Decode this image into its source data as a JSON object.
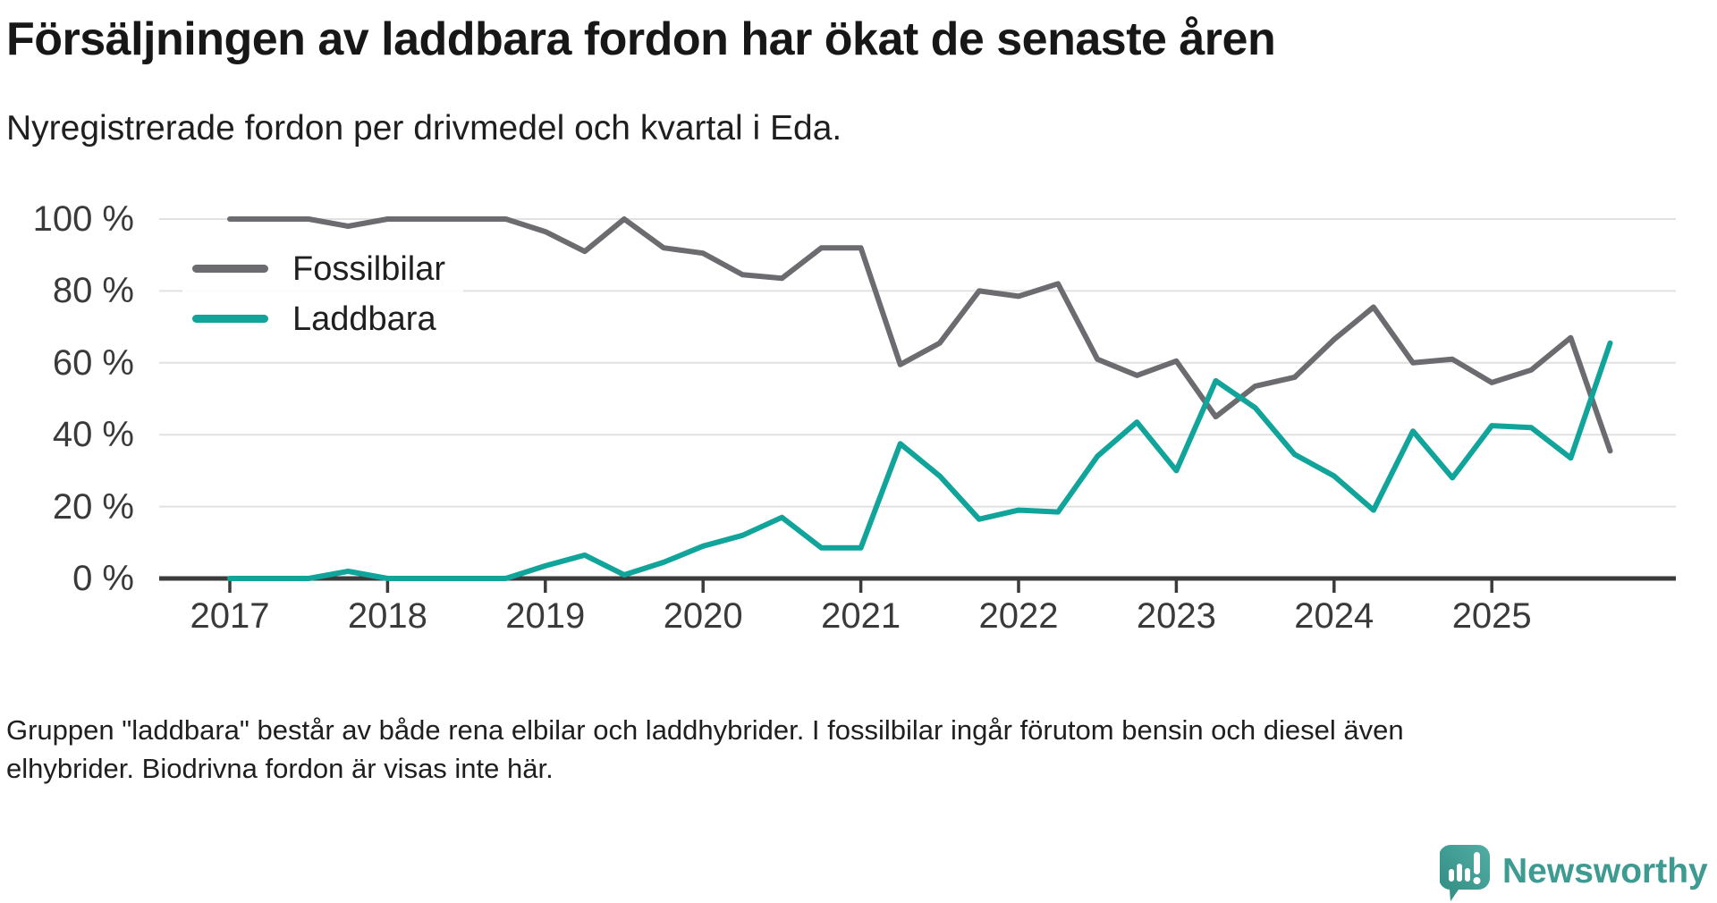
{
  "header": {
    "title": "Försäljningen av laddbara fordon har ökat de senaste åren",
    "subtitle": "Nyregistrerade fordon per drivmedel och kvartal i Eda."
  },
  "legend": {
    "items": [
      {
        "label": "Fossilbilar",
        "color": "#6c6b70"
      },
      {
        "label": "Laddbara",
        "color": "#10a49b"
      }
    ]
  },
  "footer": {
    "line1": "Gruppen \"laddbara\" består av både rena elbilar och laddhybrider. I fossilbilar ingår förutom bensin och diesel även",
    "line2": "elhybrider. Biodrivna fordon är visas inte här."
  },
  "logo": {
    "text": "Newsworthy",
    "icon": "speech-bubble-bar-chart",
    "color": "#3d9b92"
  },
  "colors": {
    "fossil_line": "#6c6b70",
    "laddbara_line": "#10a49b",
    "axis": "#3b3b3b",
    "gridline": "#e1e1e1",
    "tick_label": "#3a3a3a"
  },
  "chart_data": {
    "type": "line",
    "title": "Försäljningen av laddbara fordon har ökat de senaste åren",
    "subtitle": "Nyregistrerade fordon per drivmedel och kvartal i Eda.",
    "xlabel": "",
    "ylabel": "",
    "unit": "%",
    "ylim": [
      0,
      100
    ],
    "grid": "horizontal",
    "legend_position": "top-left-inside",
    "y_ticks": [
      {
        "label": "100 %",
        "value": 100
      },
      {
        "label": "80 %",
        "value": 80
      },
      {
        "label": "60 %",
        "value": 60
      },
      {
        "label": "40 %",
        "value": 40
      },
      {
        "label": "20 %",
        "value": 20
      },
      {
        "label": "0 %",
        "value": 0
      }
    ],
    "x_tick_labels": [
      "2017",
      "2018",
      "2019",
      "2020",
      "2021",
      "2022",
      "2023",
      "2024",
      "2025"
    ],
    "categories": [
      "2017-Q1",
      "2017-Q2",
      "2017-Q3",
      "2017-Q4",
      "2018-Q1",
      "2018-Q2",
      "2018-Q3",
      "2018-Q4",
      "2019-Q1",
      "2019-Q2",
      "2019-Q3",
      "2019-Q4",
      "2020-Q1",
      "2020-Q2",
      "2020-Q3",
      "2020-Q4",
      "2021-Q1",
      "2021-Q2",
      "2021-Q3",
      "2021-Q4",
      "2022-Q1",
      "2022-Q2",
      "2022-Q3",
      "2022-Q4",
      "2023-Q1",
      "2023-Q2",
      "2023-Q3",
      "2023-Q4",
      "2024-Q1",
      "2024-Q2",
      "2024-Q3",
      "2024-Q4",
      "2025-Q1",
      "2025-Q2",
      "2025-Q3",
      "2025-Q4"
    ],
    "series": [
      {
        "name": "Fossilbilar",
        "color": "#6c6b70",
        "values": [
          100,
          100,
          100,
          98,
          100,
          100,
          100,
          100,
          96.5,
          91,
          100,
          92,
          90.5,
          84.5,
          83.5,
          92,
          92,
          59.5,
          65.5,
          80,
          78.5,
          82,
          61,
          56.5,
          60.5,
          45,
          53.5,
          56,
          66.5,
          75.5,
          60,
          61,
          54.5,
          58,
          67,
          35.5
        ]
      },
      {
        "name": "Laddbara",
        "color": "#10a49b",
        "values": [
          0,
          0,
          0,
          2,
          0,
          0,
          0,
          0,
          3.5,
          6.5,
          1,
          4.5,
          9,
          12,
          17,
          8.5,
          8.5,
          37.5,
          28.5,
          16.5,
          19,
          18.5,
          34,
          43.5,
          30,
          55,
          47.5,
          34.5,
          28.5,
          19,
          41,
          28,
          42.5,
          42,
          33.5,
          65.5
        ]
      }
    ]
  }
}
